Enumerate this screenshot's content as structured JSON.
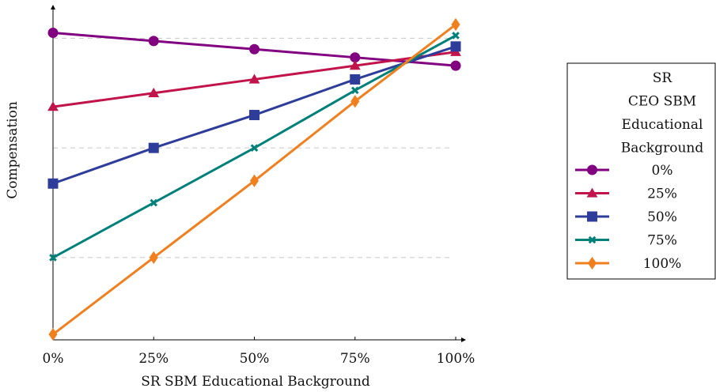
{
  "chart_data": {
    "type": "line",
    "xlabel": "SR SBM Educational Background",
    "ylabel": "Compensation",
    "x": [
      0,
      25,
      50,
      75,
      100
    ],
    "x_tick_labels": [
      "0%",
      "25%",
      "50%",
      "75%",
      "100%"
    ],
    "xlim": [
      0,
      100
    ],
    "ylim": [
      0,
      1.13
    ],
    "grid": "horizontal-dashed",
    "grid_y": [
      0.3,
      0.7,
      1.1
    ],
    "legend_position": "right",
    "legend_title_lines": [
      "SR",
      "CEO SBM",
      "Educational",
      "Background"
    ],
    "series": [
      {
        "name": "0%",
        "color": "#800080",
        "marker": "circle",
        "values": [
          1.12,
          1.09,
          1.06,
          1.03,
          1.0
        ]
      },
      {
        "name": "25%",
        "color": "#c0144b",
        "marker": "triangle",
        "values": [
          0.85,
          0.9,
          0.95,
          1.0,
          1.05
        ]
      },
      {
        "name": "50%",
        "color": "#2e3c9a",
        "marker": "square",
        "values": [
          0.57,
          0.7,
          0.82,
          0.95,
          1.07
        ]
      },
      {
        "name": "75%",
        "color": "#00807a",
        "marker": "x",
        "values": [
          0.3,
          0.5,
          0.7,
          0.91,
          1.11
        ]
      },
      {
        "name": "100%",
        "color": "#f07f1e",
        "marker": "diamond",
        "values": [
          0.02,
          0.3,
          0.58,
          0.87,
          1.15
        ]
      }
    ]
  }
}
